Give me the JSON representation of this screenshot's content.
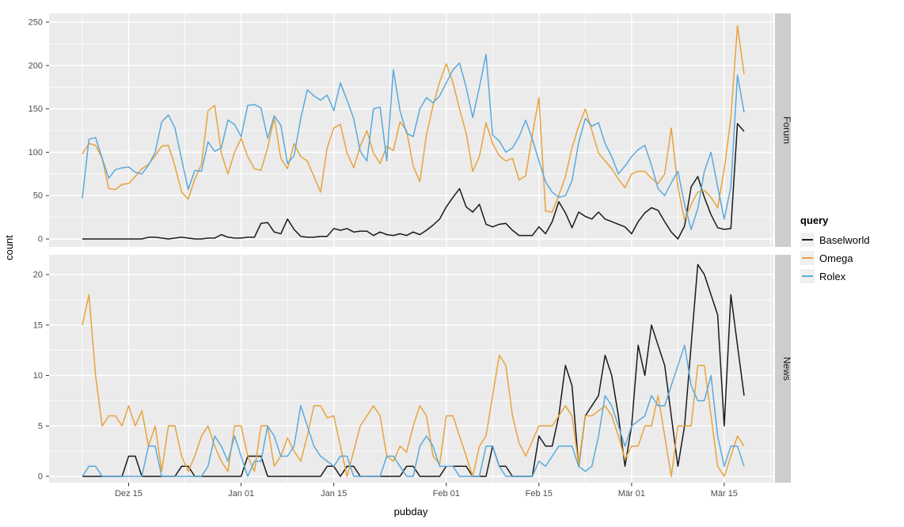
{
  "figure": {
    "y_axis_title": "count",
    "x_axis_title": "pubday"
  },
  "style": {
    "panel_bg": "#EBEBEB",
    "strip_bg": "#CDCDCD",
    "grid_color": "#FFFFFF",
    "tick_color": "#333333",
    "tick_text_color": "#4D4D4D"
  },
  "legend": {
    "title": "query",
    "entries": [
      {
        "label": "Baselworld",
        "color": "#1A1A1A"
      },
      {
        "label": "Omega",
        "color": "#E8A33C"
      },
      {
        "label": "Rolex",
        "color": "#5BA9DC"
      }
    ]
  },
  "chart_data": {
    "type": "line",
    "title": "",
    "xlabel": "pubday",
    "ylabel": "count",
    "grid": true,
    "legend_position": "right",
    "x": {
      "unit": "day",
      "start_label": "Dez 08",
      "end_label": "Mär 18",
      "n_days": 101,
      "tick_days": [
        7,
        24,
        38,
        55,
        69,
        83,
        97
      ],
      "tick_labels": [
        "Dez 15",
        "Jan 01",
        "Jan 15",
        "Feb 01",
        "Feb 15",
        "Mär 01",
        "Mär 15"
      ],
      "minor_days": [
        0,
        15.5,
        31,
        46.5,
        62,
        76,
        90,
        104
      ]
    },
    "facets": [
      {
        "label": "Forum",
        "ylim": [
          0,
          250
        ],
        "yticks": [
          0,
          50,
          100,
          150,
          200,
          250
        ],
        "series": [
          {
            "name": "Baselworld",
            "color": "#1A1A1A",
            "values": [
              0,
              0,
              0,
              0,
              0,
              0,
              0,
              0,
              0,
              0,
              2,
              2,
              1,
              0,
              1,
              2,
              1,
              0,
              0,
              1,
              1,
              5,
              2,
              1,
              1,
              2,
              2,
              18,
              19,
              8,
              6,
              23,
              11,
              3,
              2,
              2,
              3,
              3,
              12,
              10,
              12,
              8,
              9,
              9,
              4,
              8,
              5,
              4,
              6,
              4,
              8,
              5,
              10,
              16,
              23,
              37,
              48,
              58,
              37,
              31,
              40,
              17,
              14,
              17,
              18,
              10,
              4,
              4,
              4,
              14,
              6,
              20,
              43,
              30,
              13,
              31,
              26,
              23,
              31,
              23,
              20,
              17,
              14,
              6,
              20,
              30,
              36,
              33,
              20,
              8,
              0,
              15,
              60,
              72,
              48,
              28,
              13,
              11,
              12,
              133,
              124
            ]
          },
          {
            "name": "Omega",
            "color": "#E8A33C",
            "values": [
              98,
              110,
              108,
              93,
              58,
              57,
              63,
              64,
              72,
              81,
              86,
              96,
              107,
              108,
              84,
              54,
              46,
              69,
              86,
              148,
              154,
              99,
              75,
              100,
              116,
              95,
              81,
              79,
              105,
              140,
              93,
              81,
              110,
              95,
              90,
              72,
              54,
              105,
              128,
              132,
              99,
              82,
              107,
              125,
              99,
              87,
              107,
              102,
              135,
              125,
              84,
              66,
              120,
              154,
              181,
              202,
              180,
              150,
              122,
              78,
              95,
              134,
              110,
              96,
              90,
              93,
              68,
              73,
              120,
              163,
              32,
              31,
              50,
              72,
              105,
              130,
              150,
              125,
              99,
              90,
              81,
              69,
              59,
              75,
              78,
              78,
              70,
              64,
              75,
              128,
              60,
              22,
              40,
              54,
              56,
              48,
              36,
              80,
              140,
              246,
              190
            ]
          },
          {
            "name": "Rolex",
            "color": "#5BA9DC",
            "values": [
              47,
              115,
              117,
              93,
              70,
              80,
              82,
              83,
              77,
              75,
              85,
              100,
              135,
              143,
              128,
              92,
              57,
              79,
              78,
              112,
              101,
              105,
              137,
              132,
              118,
              154,
              155,
              151,
              116,
              142,
              131,
              87,
              96,
              139,
              172,
              165,
              160,
              166,
              148,
              180,
              160,
              139,
              101,
              90,
              150,
              152,
              90,
              195,
              148,
              122,
              118,
              150,
              163,
              157,
              165,
              180,
              195,
              203,
              175,
              140,
              175,
              213,
              120,
              113,
              100,
              105,
              118,
              137,
              115,
              90,
              66,
              54,
              48,
              50,
              67,
              111,
              139,
              130,
              134,
              110,
              95,
              75,
              84,
              95,
              103,
              108,
              85,
              58,
              50,
              65,
              78,
              40,
              11,
              35,
              78,
              100,
              60,
              23,
              60,
              189,
              146
            ]
          }
        ]
      },
      {
        "label": "News",
        "ylim": [
          0,
          21
        ],
        "yticks": [
          0,
          5,
          10,
          15,
          20
        ],
        "series": [
          {
            "name": "Baselworld",
            "color": "#1A1A1A",
            "values": [
              0,
              0,
              0,
              0,
              0,
              0,
              0,
              2,
              2,
              0,
              0,
              0,
              0,
              0,
              0,
              1,
              1,
              0,
              0,
              0,
              0,
              0,
              0,
              0,
              0,
              2,
              2,
              2,
              0,
              0,
              0,
              0,
              0,
              0,
              0,
              0,
              0,
              1,
              1,
              0,
              1,
              1,
              0,
              0,
              0,
              0,
              0,
              0,
              0,
              1,
              1,
              0,
              0,
              0,
              0,
              1,
              1,
              1,
              1,
              0,
              0,
              0,
              3,
              1,
              1,
              0,
              0,
              0,
              0,
              4,
              3,
              3,
              6,
              11,
              9,
              1,
              6,
              7,
              8,
              12,
              10,
              6,
              1,
              5,
              13,
              10,
              15,
              13,
              11,
              6,
              1,
              5,
              13,
              21,
              20,
              18,
              16,
              5,
              18,
              13,
              8
            ]
          },
          {
            "name": "Omega",
            "color": "#E8A33C",
            "values": [
              15,
              18,
              10,
              5,
              6,
              6,
              5,
              7,
              5,
              6.5,
              3,
              5,
              0.5,
              5,
              5,
              2,
              0.5,
              2,
              4,
              5,
              3,
              1.5,
              0.5,
              5,
              5,
              2,
              0.5,
              5,
              5,
              1,
              2,
              3.8,
              2.5,
              1.5,
              4,
              7,
              7,
              5.8,
              6,
              3,
              0,
              2.5,
              5,
              6,
              7,
              6,
              2,
              1.5,
              3,
              2.4,
              5,
              7,
              6,
              2,
              1.2,
              6,
              6,
              4,
              2,
              0,
              3,
              4,
              8,
              12,
              11,
              6,
              3.3,
              2,
              3.5,
              5,
              5,
              5,
              6,
              7,
              6,
              1.2,
              6,
              6,
              6.5,
              7,
              6,
              4,
              1.7,
              3,
              3,
              5,
              5,
              8,
              4,
              0,
              5,
              5,
              5,
              11,
              11,
              6,
              1,
              0,
              2,
              4,
              3
            ]
          },
          {
            "name": "Rolex",
            "color": "#5BA9DC",
            "values": [
              0,
              1,
              1,
              0,
              0,
              0,
              0,
              0,
              0,
              0,
              3,
              3,
              0,
              0,
              0,
              0,
              0,
              0,
              0,
              1,
              4,
              3,
              1.5,
              4,
              2,
              0,
              1.5,
              1.5,
              5,
              4,
              2,
              2,
              3,
              7,
              5,
              3,
              2,
              1.5,
              1,
              2,
              2,
              0,
              0,
              0,
              0,
              0,
              2,
              2,
              1,
              0,
              0,
              3,
              4,
              3,
              1,
              1,
              1,
              0,
              0,
              0,
              0,
              3,
              3,
              1,
              0,
              0,
              0,
              0,
              0,
              1.5,
              1,
              2,
              3,
              3,
              3,
              1,
              0.5,
              1,
              4,
              8,
              7,
              5,
              3,
              5,
              5.5,
              6,
              8,
              7,
              7,
              9,
              11,
              13,
              9,
              7.5,
              7.5,
              10,
              4,
              1,
              3,
              3,
              1
            ]
          }
        ]
      }
    ]
  }
}
